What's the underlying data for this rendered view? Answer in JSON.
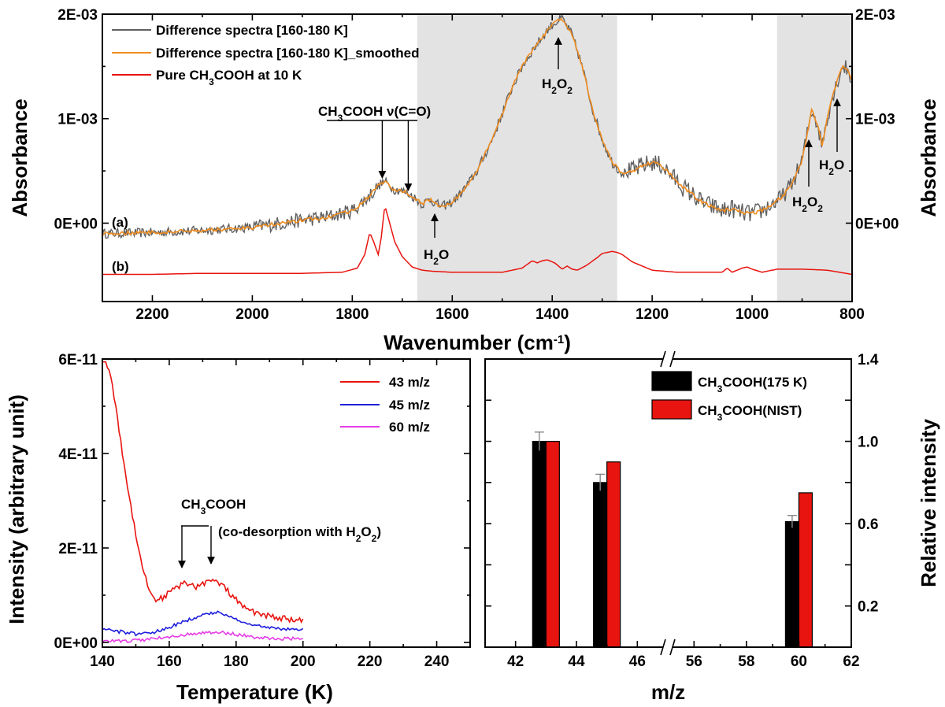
{
  "chart_data": [
    {
      "type": "line",
      "panel": "top",
      "xlabel": "Wavenumber (cm-1)",
      "xlabel_parts": [
        "Wavenumber (cm",
        "-1",
        ")"
      ],
      "ylabel_left": "Absorbance",
      "ylabel_right": "Absorbance",
      "xlim": [
        2300,
        800
      ],
      "ylim": [
        -0.00075,
        0.002
      ],
      "x_ticks": [
        2200,
        2000,
        1800,
        1600,
        1400,
        1200,
        1000,
        800
      ],
      "y_ticks": [
        0,
        0.001,
        0.002
      ],
      "y_tick_labels": [
        "0E+00",
        "1E-03",
        "2E-03"
      ],
      "shaded_regions": [
        [
          1670,
          1270
        ],
        [
          950,
          800
        ]
      ],
      "shade_color": "#e3e3e3",
      "legend_position": "top-left",
      "series": [
        {
          "name": "Difference spectra [160-180 K]",
          "color": "#606060",
          "noisy": true,
          "x": [
            2300,
            2200,
            2100,
            2000,
            1900,
            1850,
            1800,
            1770,
            1745,
            1735,
            1715,
            1700,
            1680,
            1660,
            1645,
            1630,
            1620,
            1600,
            1580,
            1550,
            1520,
            1500,
            1480,
            1460,
            1440,
            1420,
            1400,
            1380,
            1360,
            1340,
            1320,
            1300,
            1280,
            1260,
            1240,
            1220,
            1200,
            1180,
            1160,
            1140,
            1100,
            1060,
            1040,
            1020,
            1000,
            980,
            960,
            940,
            920,
            900,
            890,
            880,
            870,
            860,
            850,
            840,
            830,
            820,
            810,
            800
          ],
          "values": [
            -0.0001,
            -9e-05,
            -7e-05,
            -4e-05,
            3e-05,
            6e-05,
            0.00012,
            0.00024,
            0.00037,
            0.0004,
            0.00032,
            0.00031,
            0.00026,
            0.00018,
            0.00023,
            0.00018,
            0.00016,
            0.0002,
            0.0003,
            0.0005,
            0.0008,
            0.00105,
            0.0013,
            0.0015,
            0.00165,
            0.00178,
            0.0019,
            0.00196,
            0.0018,
            0.0015,
            0.0011,
            0.0008,
            0.00058,
            0.00048,
            0.0005,
            0.00055,
            0.00058,
            0.00055,
            0.00045,
            0.00035,
            0.0002,
            0.00012,
            0.00014,
            0.0001,
            9e-05,
            0.00012,
            0.00018,
            0.00025,
            0.00038,
            0.0006,
            0.00085,
            0.0011,
            0.00095,
            0.00075,
            0.001,
            0.0012,
            0.00135,
            0.0015,
            0.00148,
            0.00135
          ],
          "label_tag": "(a)"
        },
        {
          "name": "Difference spectra [160-180 K]_smoothed",
          "color": "#f08c1e",
          "noisy": false,
          "x": [
            2300,
            2200,
            2100,
            2000,
            1900,
            1850,
            1800,
            1770,
            1745,
            1735,
            1715,
            1700,
            1680,
            1660,
            1645,
            1630,
            1620,
            1600,
            1580,
            1550,
            1520,
            1500,
            1480,
            1460,
            1440,
            1420,
            1400,
            1380,
            1360,
            1340,
            1320,
            1300,
            1280,
            1260,
            1240,
            1220,
            1200,
            1180,
            1160,
            1140,
            1100,
            1060,
            1040,
            1020,
            1000,
            980,
            960,
            940,
            920,
            900,
            890,
            880,
            870,
            860,
            850,
            840,
            830,
            820,
            810,
            800
          ],
          "values": [
            -0.0001,
            -9e-05,
            -7e-05,
            -4e-05,
            3e-05,
            6e-05,
            0.00012,
            0.00024,
            0.00037,
            0.0004,
            0.00032,
            0.00031,
            0.00026,
            0.00018,
            0.00023,
            0.00018,
            0.00016,
            0.0002,
            0.0003,
            0.0005,
            0.0008,
            0.00105,
            0.0013,
            0.0015,
            0.00165,
            0.00178,
            0.0019,
            0.00196,
            0.0018,
            0.0015,
            0.0011,
            0.0008,
            0.00058,
            0.00048,
            0.0005,
            0.00055,
            0.00058,
            0.00055,
            0.00045,
            0.00035,
            0.0002,
            0.00012,
            0.00014,
            0.0001,
            9e-05,
            0.00012,
            0.00018,
            0.00025,
            0.00038,
            0.0006,
            0.00085,
            0.0011,
            0.00095,
            0.00075,
            0.001,
            0.0012,
            0.00135,
            0.0015,
            0.00148,
            0.00135
          ]
        },
        {
          "name": "Pure CH3COOH at 10 K",
          "legend_parts": [
            "Pure CH",
            "3",
            "COOH at 10 K"
          ],
          "color": "#e8140f",
          "noisy": false,
          "x": [
            2300,
            2200,
            2100,
            2000,
            1900,
            1820,
            1790,
            1775,
            1765,
            1757,
            1748,
            1742,
            1735,
            1728,
            1715,
            1700,
            1680,
            1660,
            1640,
            1600,
            1500,
            1460,
            1440,
            1430,
            1420,
            1410,
            1395,
            1380,
            1370,
            1360,
            1350,
            1330,
            1310,
            1300,
            1290,
            1280,
            1270,
            1260,
            1240,
            1200,
            1150,
            1100,
            1060,
            1050,
            1040,
            1020,
            1010,
            1000,
            980,
            950,
            900,
            850,
            800
          ],
          "values": [
            -0.00049,
            -0.00049,
            -0.00048,
            -0.00048,
            -0.00048,
            -0.00047,
            -0.00043,
            -0.0003,
            -9e-05,
            -0.00018,
            -0.0003,
            -0.00014,
            0.00017,
            5e-05,
            -0.00018,
            -0.00032,
            -0.00042,
            -0.00045,
            -0.00046,
            -0.00047,
            -0.00047,
            -0.00043,
            -0.00036,
            -0.00038,
            -0.00036,
            -0.00035,
            -0.00038,
            -0.00044,
            -0.00041,
            -0.00044,
            -0.00045,
            -0.0004,
            -0.00033,
            -0.00029,
            -0.00028,
            -0.00027,
            -0.00028,
            -0.0003,
            -0.00037,
            -0.00045,
            -0.00047,
            -0.00047,
            -0.00047,
            -0.00043,
            -0.00047,
            -0.00043,
            -0.00042,
            -0.00044,
            -0.00047,
            -0.00044,
            -0.00044,
            -0.00045,
            -0.00049
          ],
          "label_tag": "(b)"
        }
      ],
      "annotations": [
        {
          "label": "CH3COOH v(C=O)",
          "parts": [
            "CH",
            "3",
            "COOH ",
            "ν",
            "(C=O)"
          ],
          "arrow_x": [
            1740,
            1688
          ],
          "arrow_y": 0.00045,
          "direction": "down"
        },
        {
          "label": "H2O",
          "parts": [
            "H",
            "2",
            "O"
          ],
          "x": 1630,
          "arrow_tip_y": 0.00022,
          "direction": "up"
        },
        {
          "label": "H2O2",
          "parts": [
            "H",
            "2",
            "O",
            "2"
          ],
          "x": 1380,
          "arrow_tip_y": 0.00175,
          "direction": "up"
        },
        {
          "label": "H2O2",
          "parts": [
            "H",
            "2",
            "O",
            "2"
          ],
          "x": 885,
          "arrow_tip_y": 0.00085,
          "direction": "up"
        },
        {
          "label": "H2O",
          "parts": [
            "H",
            "2",
            "O"
          ],
          "x": 820,
          "arrow_tip_y": 0.0012,
          "direction": "up"
        }
      ]
    },
    {
      "type": "line",
      "panel": "bottom-left",
      "xlabel": "Temperature (K)",
      "ylabel": "Intensity (arbitrary unit)",
      "xlim": [
        140,
        250
      ],
      "ylim": [
        -1e-12,
        6e-11
      ],
      "x_ticks": [
        140,
        160,
        180,
        200,
        220,
        240
      ],
      "y_ticks": [
        0,
        2e-11,
        4e-11,
        6e-11
      ],
      "y_tick_labels": [
        "0E+00",
        "2E-11",
        "4E-11",
        "6E-11"
      ],
      "legend_position": "top-right",
      "series": [
        {
          "name": "43 m/z",
          "color": "#e8140f",
          "x": [
            140,
            142,
            144,
            146,
            148,
            150,
            152,
            154,
            156,
            158,
            160,
            162,
            164,
            166,
            168,
            170,
            172,
            174,
            176,
            178,
            180,
            182,
            185,
            190,
            195,
            200
          ],
          "values": [
            6e-11,
            5.8e-11,
            5e-11,
            4e-11,
            3.1e-11,
            2.3e-11,
            1.6e-11,
            1.1e-11,
            9e-12,
            9.5e-12,
            1.05e-11,
            1.15e-11,
            1.25e-11,
            1.22e-11,
            1.18e-11,
            1.25e-11,
            1.3e-11,
            1.28e-11,
            1.2e-11,
            1.05e-11,
            9e-12,
            7.5e-12,
            6.5e-12,
            5.5e-12,
            5e-12,
            4.5e-12
          ]
        },
        {
          "name": "45 m/z",
          "color": "#1e1edc",
          "x": [
            140,
            145,
            150,
            155,
            160,
            165,
            170,
            174,
            178,
            182,
            186,
            190,
            195,
            200
          ],
          "values": [
            3e-12,
            2.3e-12,
            1.8e-12,
            2.1e-12,
            3.2e-12,
            4.6e-12,
            5.8e-12,
            6.4e-12,
            5.6e-12,
            4.4e-12,
            3.6e-12,
            3e-12,
            2.9e-12,
            2.8e-12
          ]
        },
        {
          "name": "60 m/z",
          "color": "#e63ce6",
          "x": [
            140,
            145,
            150,
            155,
            160,
            165,
            170,
            174,
            178,
            182,
            186,
            190,
            195,
            200
          ],
          "values": [
            3e-13,
            3e-13,
            4e-13,
            7e-13,
            1.2e-12,
            1.7e-12,
            2e-12,
            2.2e-12,
            1.9e-12,
            1.5e-12,
            1.1e-12,
            9e-13,
            8e-13,
            8e-13
          ]
        }
      ],
      "annotations": [
        {
          "label": "CH3COOH",
          "parts": [
            "CH",
            "3",
            "COOH"
          ],
          "arrow_x": [
            165,
            173
          ],
          "direction": "down"
        },
        {
          "label": "(co-desorption with H2O2)",
          "parts": [
            "(co-desorption with H",
            "2",
            "O",
            "2",
            ")"
          ]
        }
      ]
    },
    {
      "type": "bar",
      "panel": "bottom-right",
      "xlabel": "m/z",
      "ylabel": "Relative intensity",
      "axis_break": true,
      "x_segments": [
        [
          41,
          47
        ],
        [
          55,
          62
        ]
      ],
      "x_ticks": [
        42,
        44,
        46,
        56,
        58,
        60,
        62
      ],
      "ylim": [
        0,
        1.4
      ],
      "y_ticks": [
        0.2,
        0.6,
        1.0,
        1.4
      ],
      "y_tick_labels": [
        "0.2",
        "0.6",
        "1.0",
        "1.4"
      ],
      "y_minor_ticks": [
        0.4,
        0.8,
        1.2
      ],
      "legend_position": "top-right",
      "categories": [
        43,
        45,
        60
      ],
      "series": [
        {
          "name": "CH3COOH(175 K)",
          "legend_parts": [
            "CH",
            "3",
            "COOH(175 K)"
          ],
          "color": "#000000",
          "values": [
            1.0,
            0.8,
            0.61
          ],
          "errors": [
            0.045,
            0.04,
            0.03
          ]
        },
        {
          "name": "CH3COOH(NIST)",
          "legend_parts": [
            "CH",
            "3",
            "COOH(NIST)"
          ],
          "color": "#e8140f",
          "values": [
            1.0,
            0.9,
            0.75
          ]
        }
      ]
    }
  ]
}
